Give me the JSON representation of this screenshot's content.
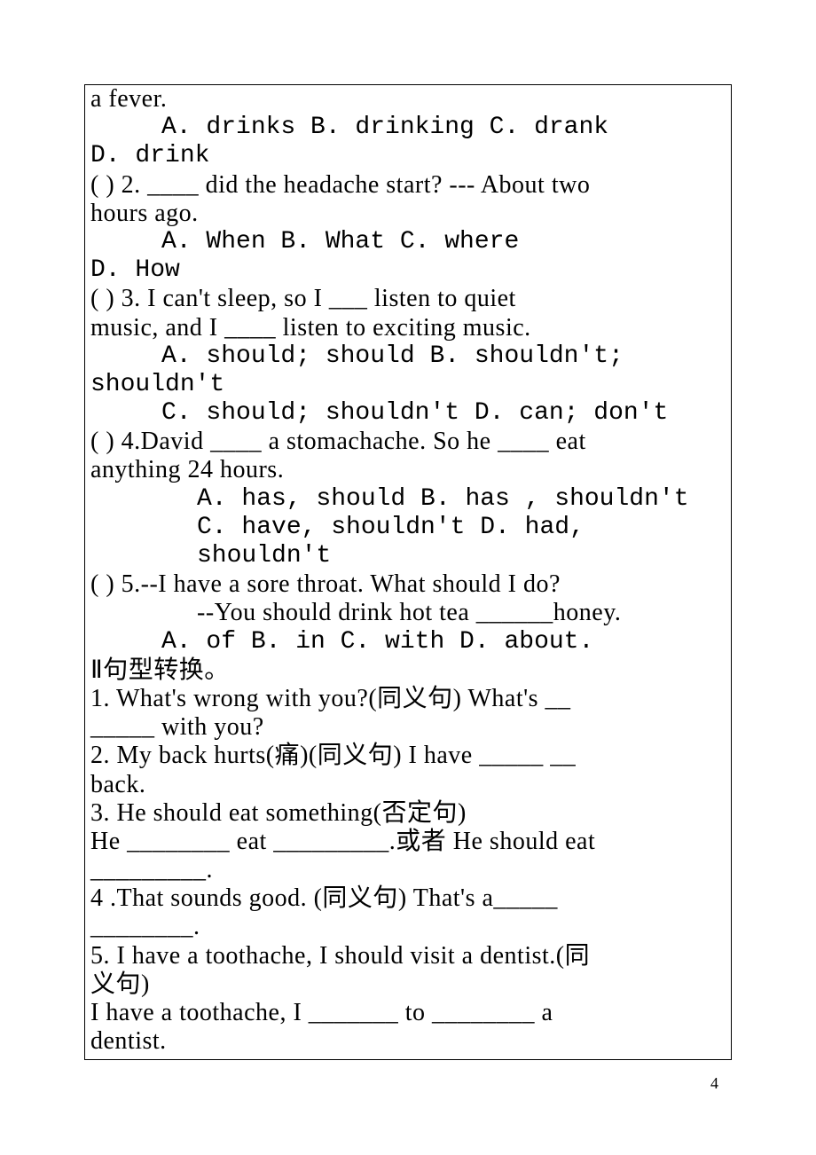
{
  "pg": "4",
  "l1": "a fever.",
  "l2": "A. drinks    B. drinking    C. drank",
  "l3": "D. drink",
  "l4": "(   ) 2. ____ did the headache start? --- About two",
  "l5": "hours ago.",
  "l6": "A. When     B. What     C. where",
  "l7": "D. How",
  "l8": "(   ) 3. I can't sleep, so I ___ listen to quiet",
  "l9": "music, and I ____ listen to exciting music.",
  "l10": "A. should; should      B. shouldn't;",
  "l11": "shouldn't",
  "l12": "C. should; shouldn't     D. can; don't",
  "l13": "(   ) 4.David ____ a stomachache. So he ____ eat",
  "l14": "anything 24 hours.",
  "l15": "A. has, should      B. has , shouldn't",
  "l16": "C. have, shouldn't    D. had, shouldn't",
  "l17": "(   ) 5.--I have a sore throat. What should I do?",
  "l18": "--You should drink hot tea ______honey.",
  "l19": "A. of    B. in    C. with    D. about.",
  "l20": "Ⅱ句型转换。",
  "l21": "  1. What's wrong with you?(同义句)   What's __",
  "l22": "_____ with you?",
  "l23": "  2. My back hurts(痛)(同义句)    I have _____ __",
  "l24": "back.",
  "l25": "  3. He should eat something(否定句)",
  "l26": "  He ________ eat _________.或者 He should eat",
  "l27": "_________.",
  "l28": "  4 .That sounds good. (同义句)    That's a_____",
  "l29": "________.",
  "l30": "  5. I have a toothache, I should visit a dentist.(同",
  "l31": "义句)",
  "l32": "  I have a toothache, I _______ to ________ a",
  "l33": "dentist."
}
